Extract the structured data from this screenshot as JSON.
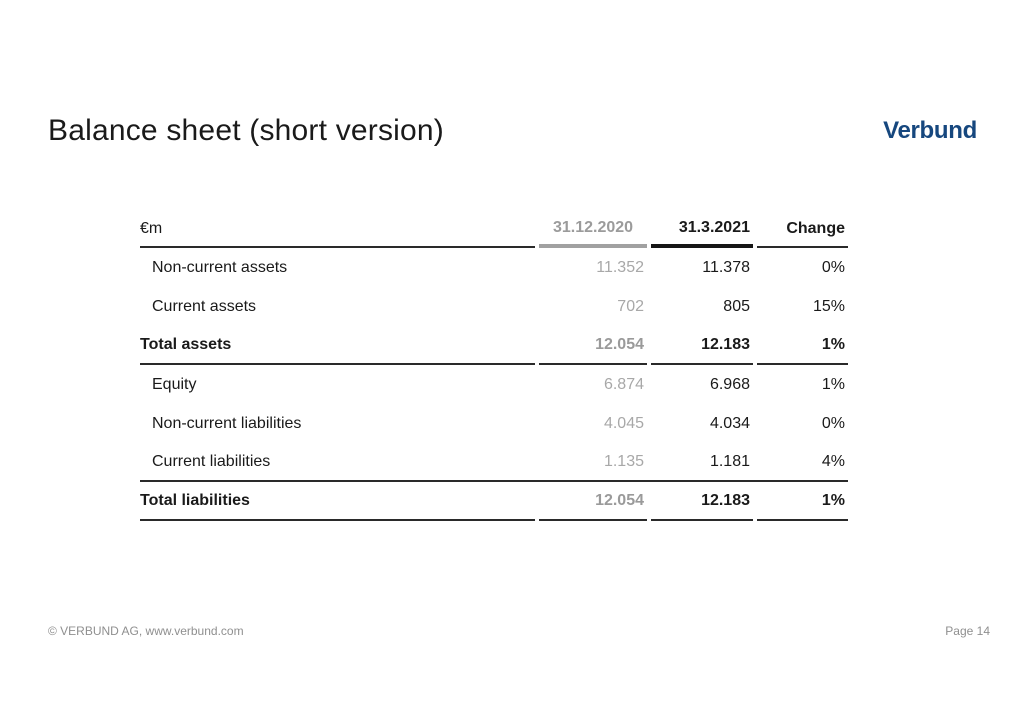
{
  "header": {
    "title": "Balance sheet (short version)",
    "logo_text": "Verbund"
  },
  "table": {
    "unit_label": "€m",
    "columns": [
      {
        "label": "31.12.2020"
      },
      {
        "label": "31.3.2021"
      },
      {
        "label": "Change"
      }
    ],
    "rows": [
      {
        "label": "Non-current assets",
        "v2020": "11.352",
        "v2021": "11.378",
        "change": "0%",
        "type": "item"
      },
      {
        "label": "Current assets",
        "v2020": "702",
        "v2021": "805",
        "change": "15%",
        "type": "item"
      },
      {
        "label": "Total assets",
        "v2020": "12.054",
        "v2021": "12.183",
        "change": "1%",
        "type": "total"
      },
      {
        "label": "Equity",
        "v2020": "6.874",
        "v2021": "6.968",
        "change": "1%",
        "type": "item"
      },
      {
        "label": "Non-current liabilities",
        "v2020": "4.045",
        "v2021": "4.034",
        "change": "0%",
        "type": "item"
      },
      {
        "label": "Current liabilities",
        "v2020": "1.135",
        "v2021": "1.181",
        "change": "4%",
        "type": "item"
      },
      {
        "label": "Total liabilities",
        "v2020": "12.054",
        "v2021": "12.183",
        "change": "1%",
        "type": "total"
      }
    ]
  },
  "footer": {
    "copyright": "© VERBUND AG, www.verbund.com",
    "page": "Page 14"
  },
  "colors": {
    "logo_blue": "#16477e",
    "text_black": "#1a1a1a",
    "muted_gray_values": "#a8a8a8",
    "muted_gray_header": "#9b9b9b",
    "rule_black": "#2a2a2a",
    "rule_gray": "#a1a1a1",
    "footer_gray": "#8f8f8f",
    "background": "#ffffff"
  }
}
